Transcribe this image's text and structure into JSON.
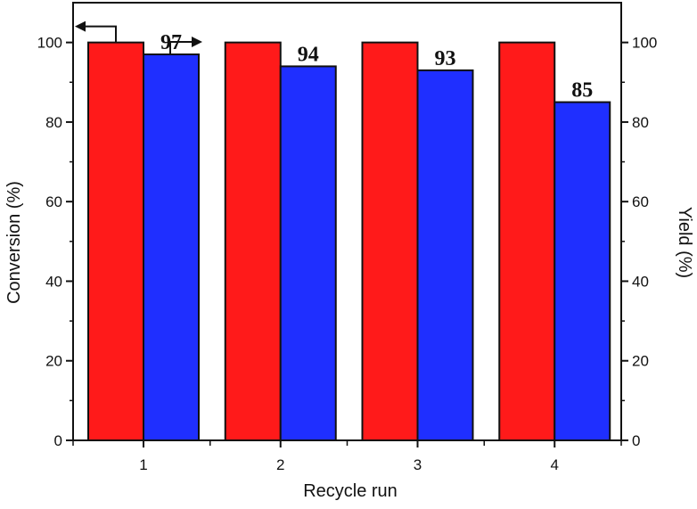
{
  "chart_data": {
    "type": "bar",
    "xlabel": "Recycle run",
    "ylabel_left": "Conversion (%)",
    "ylabel_right": "Yield (%)",
    "categories": [
      "1",
      "2",
      "3",
      "4"
    ],
    "ylim": [
      0,
      110
    ],
    "yticks": [
      "0",
      "20",
      "40",
      "60",
      "80",
      "100"
    ],
    "series": [
      {
        "axis": "left",
        "color": "#ff1a1a",
        "values": [
          100,
          100,
          100,
          100
        ]
      },
      {
        "axis": "right",
        "color": "#1f2fff",
        "values": [
          97,
          94,
          93,
          85
        ]
      }
    ],
    "data_labels": [
      "97",
      "94",
      "93",
      "85"
    ],
    "grid": false,
    "legend": "none",
    "axis_arrows": [
      {
        "series": 0,
        "direction": "left"
      },
      {
        "series": 1,
        "direction": "right"
      }
    ]
  }
}
